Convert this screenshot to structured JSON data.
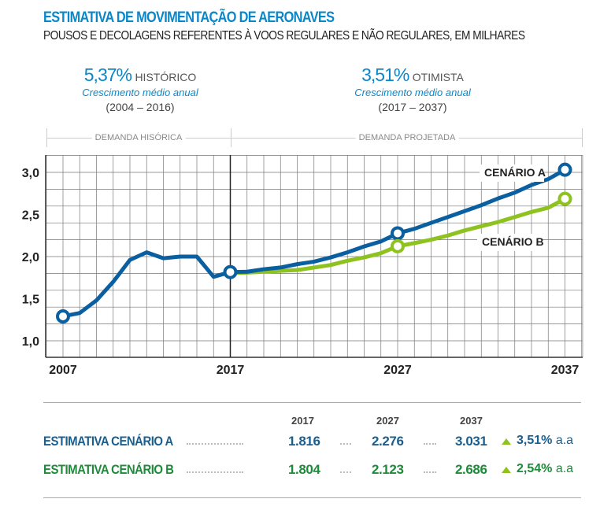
{
  "header": {
    "title": "ESTIMATIVA DE MOVIMENTAÇÃO DE AERONAVES",
    "subtitle": "POUSOS E DECOLAGENS REFERENTES À VOOS REGULARES E NÃO REGULARES, EM MILHARES"
  },
  "stats": [
    {
      "pct": "5,37%",
      "kind": "HISTÓRICO",
      "desc": "Crescimento médio anual",
      "period": "(2004 – 2016)"
    },
    {
      "pct": "3,51%",
      "kind": "OTIMISTA",
      "desc": "Crescimento médio anual",
      "period": "(2017 – 2037)"
    }
  ],
  "sections": {
    "historic": "DEMANDA HISÓRICA",
    "projected": "DEMANDA PROJETADA"
  },
  "chart_data": {
    "type": "line",
    "x": [
      2007,
      2008,
      2009,
      2010,
      2011,
      2012,
      2013,
      2014,
      2015,
      2016,
      2017,
      2018,
      2019,
      2020,
      2021,
      2022,
      2023,
      2024,
      2025,
      2026,
      2027,
      2028,
      2029,
      2030,
      2031,
      2032,
      2033,
      2034,
      2035,
      2036,
      2037
    ],
    "xticks": [
      "2007",
      "2017",
      "2027",
      "2037"
    ],
    "yticks": [
      "1,0",
      "1,5",
      "2,0",
      "2,5",
      "3,0"
    ],
    "ylim": [
      0.8,
      3.2
    ],
    "grid": true,
    "series": [
      {
        "name": "CENÁRIO A",
        "color": "#0a5fa0",
        "values": [
          1.29,
          1.33,
          1.48,
          1.7,
          1.96,
          2.05,
          1.98,
          2.0,
          2.0,
          1.76,
          1.816,
          1.82,
          1.85,
          1.87,
          1.91,
          1.94,
          1.99,
          2.05,
          2.12,
          2.18,
          2.276,
          2.33,
          2.4,
          2.47,
          2.54,
          2.61,
          2.69,
          2.76,
          2.85,
          2.92,
          3.031
        ],
        "markers": [
          2007,
          2017,
          2027,
          2037
        ]
      },
      {
        "name": "CENÁRIO B",
        "color": "#8dc21f",
        "values": [
          null,
          null,
          null,
          null,
          null,
          null,
          null,
          null,
          null,
          null,
          1.804,
          1.81,
          1.82,
          1.83,
          1.84,
          1.87,
          1.9,
          1.95,
          1.99,
          2.04,
          2.123,
          2.16,
          2.2,
          2.25,
          2.31,
          2.36,
          2.41,
          2.47,
          2.53,
          2.58,
          2.686
        ],
        "markers": [
          2027,
          2037
        ]
      }
    ]
  },
  "table": {
    "years": [
      "2017",
      "2027",
      "2037"
    ],
    "rows": [
      {
        "label": "ESTIMATIVA CENÁRIO A",
        "color": "#1a5f8e",
        "values": [
          "1.816",
          "2.276",
          "3.031"
        ],
        "rate": "3,51%",
        "unit": "a.a"
      },
      {
        "label": "ESTIMATIVA CENÁRIO B",
        "color": "#1e8a3a",
        "values": [
          "1.804",
          "2.123",
          "2.686"
        ],
        "rate": "2,54%",
        "unit": "a.a"
      }
    ]
  }
}
